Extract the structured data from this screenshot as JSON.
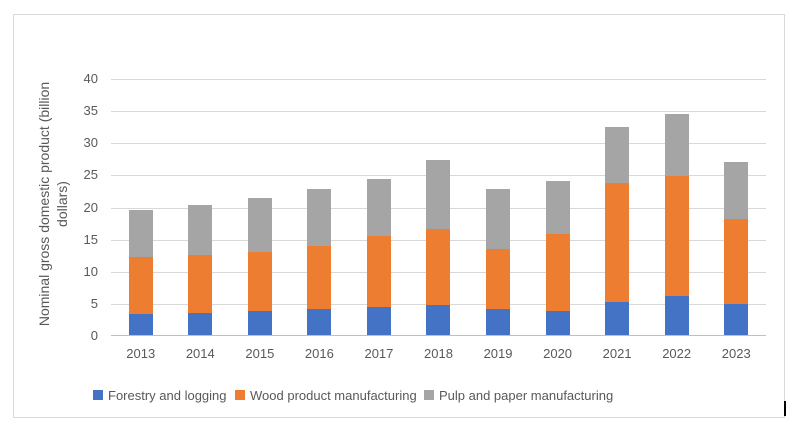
{
  "chart_data": {
    "type": "bar",
    "stacked": true,
    "title": "",
    "categories": [
      "2013",
      "2014",
      "2015",
      "2016",
      "2017",
      "2018",
      "2019",
      "2020",
      "2021",
      "2022",
      "2023"
    ],
    "series": [
      {
        "name": "Forestry and logging",
        "color": "#4472C4",
        "values": [
          3.3,
          3.5,
          3.7,
          4.0,
          4.4,
          4.7,
          4.1,
          3.7,
          5.2,
          6.1,
          4.8
        ]
      },
      {
        "name": "Wood product manufacturing",
        "color": "#ED7D31",
        "values": [
          8.8,
          9.0,
          9.2,
          9.9,
          11.0,
          11.8,
          9.3,
          12.1,
          18.4,
          18.7,
          13.3
        ]
      },
      {
        "name": "Pulp and paper manufacturing",
        "color": "#A5A5A5",
        "values": [
          7.4,
          7.8,
          8.5,
          8.8,
          8.9,
          10.7,
          9.4,
          8.2,
          8.8,
          9.6,
          8.9
        ]
      }
    ],
    "totals": [
      19.5,
      20.3,
      21.4,
      22.7,
      24.3,
      27.2,
      22.8,
      24.0,
      32.4,
      34.4,
      27.0
    ],
    "xlabel": "",
    "ylabel": "Nominal gross domestic product (billion dollars)",
    "ylabel_lines": [
      "Nominal gross domestic product (billion",
      "dollars)"
    ],
    "ylim": [
      0,
      40
    ],
    "yticks": [
      0,
      5,
      10,
      15,
      20,
      25,
      30,
      35,
      40
    ],
    "grid": "horizontal",
    "legend_position": "bottom",
    "colors": {
      "axis_text": "#595959",
      "gridline": "#D9D9D9",
      "axis_line": "#BFBFBF",
      "chart_border": "#D9D9D9",
      "background": "#FFFFFF"
    }
  }
}
